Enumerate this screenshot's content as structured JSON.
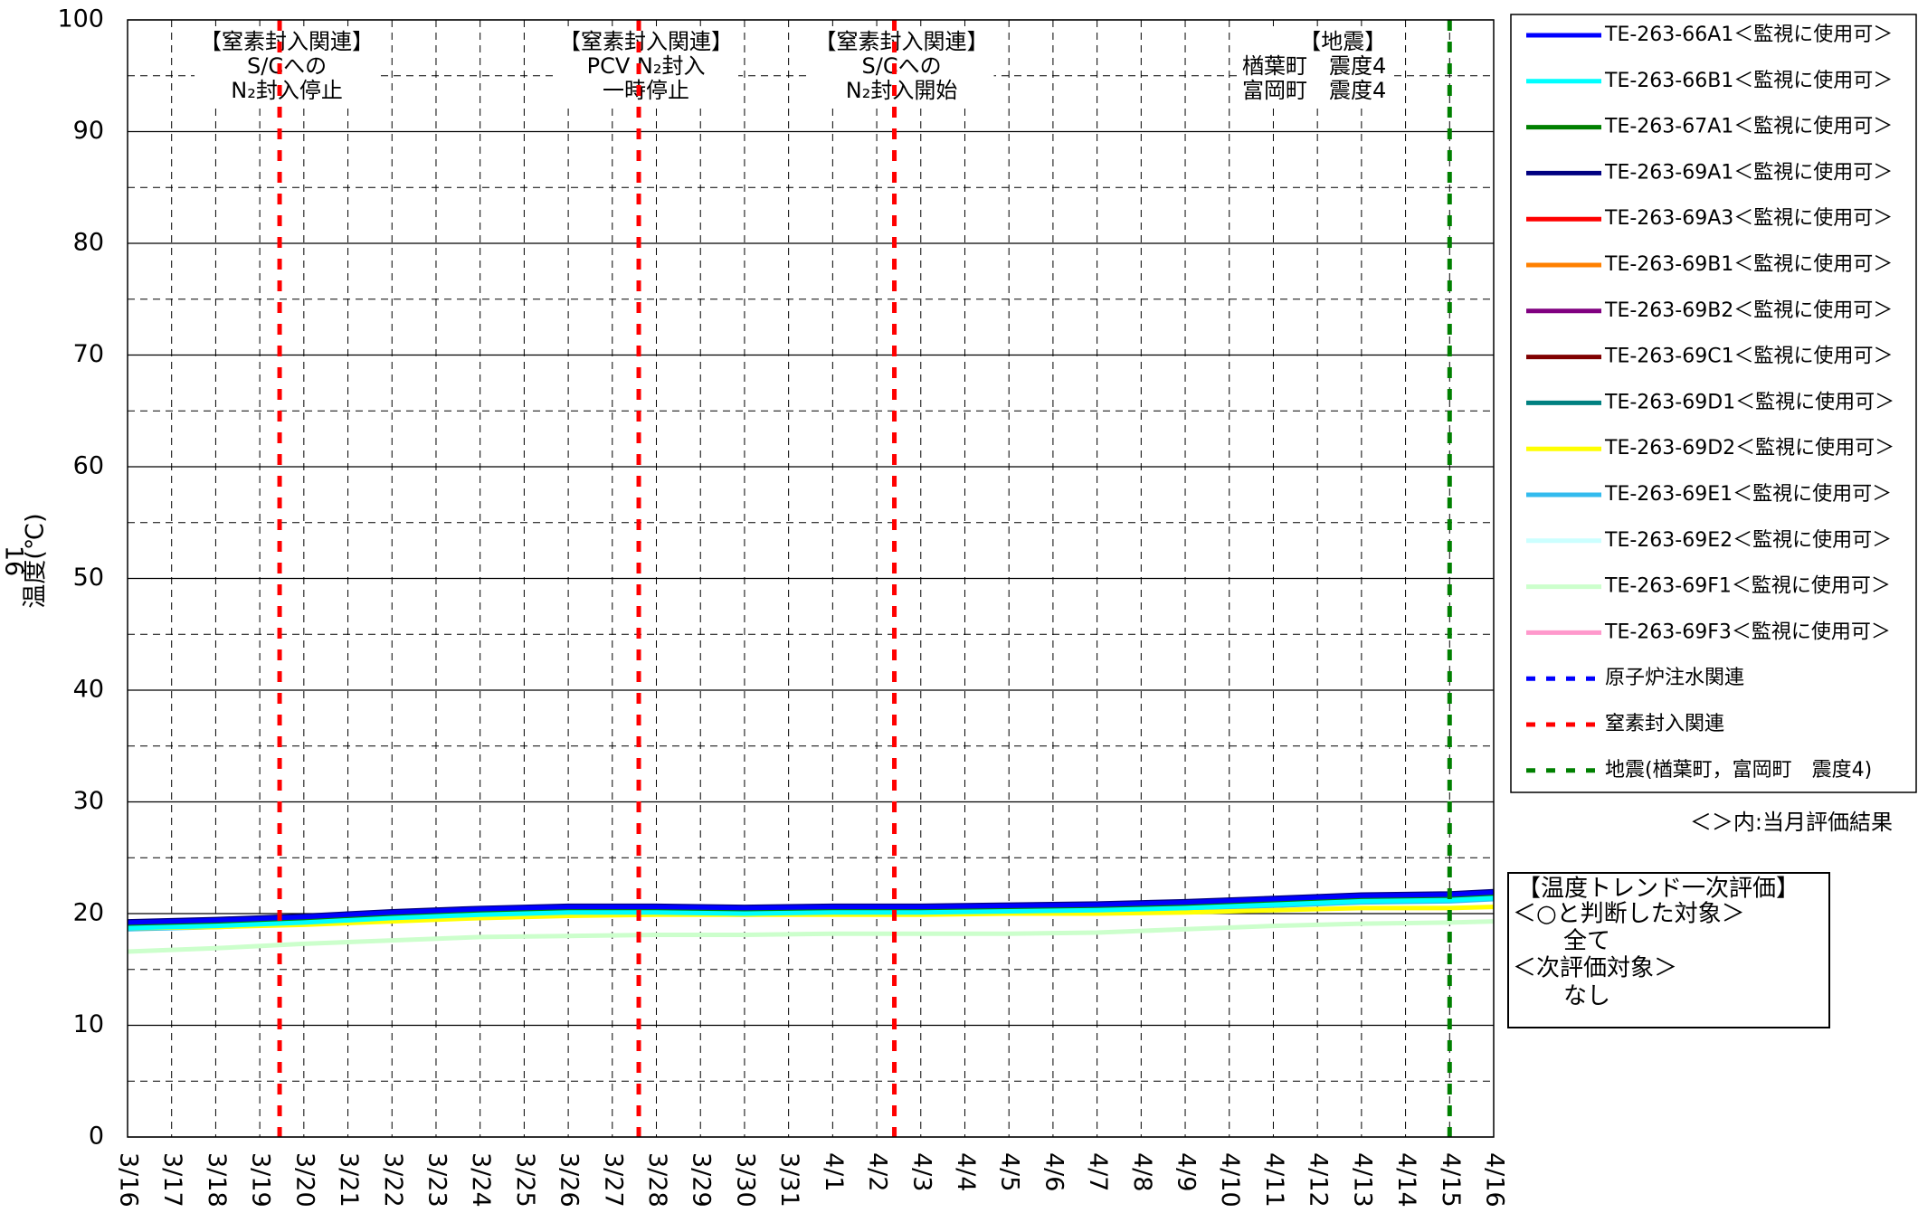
{
  "chart_data": {
    "type": "line",
    "y_label": "温度(℃)",
    "page_number": "16",
    "xlim": [
      0,
      31
    ],
    "xticks": [
      {
        "value": 0,
        "label": "3/16"
      },
      {
        "value": 1,
        "label": "3/17"
      },
      {
        "value": 2,
        "label": "3/18"
      },
      {
        "value": 3,
        "label": "3/19"
      },
      {
        "value": 4,
        "label": "3/20"
      },
      {
        "value": 5,
        "label": "3/21"
      },
      {
        "value": 6,
        "label": "3/22"
      },
      {
        "value": 7,
        "label": "3/23"
      },
      {
        "value": 8,
        "label": "3/24"
      },
      {
        "value": 9,
        "label": "3/25"
      },
      {
        "value": 10,
        "label": "3/26"
      },
      {
        "value": 11,
        "label": "3/27"
      },
      {
        "value": 12,
        "label": "3/28"
      },
      {
        "value": 13,
        "label": "3/29"
      },
      {
        "value": 14,
        "label": "3/30"
      },
      {
        "value": 15,
        "label": "3/31"
      },
      {
        "value": 16,
        "label": "4/1"
      },
      {
        "value": 17,
        "label": "4/2"
      },
      {
        "value": 18,
        "label": "4/3"
      },
      {
        "value": 19,
        "label": "4/4"
      },
      {
        "value": 20,
        "label": "4/5"
      },
      {
        "value": 21,
        "label": "4/6"
      },
      {
        "value": 22,
        "label": "4/7"
      },
      {
        "value": 23,
        "label": "4/8"
      },
      {
        "value": 24,
        "label": "4/9"
      },
      {
        "value": 25,
        "label": "4/10"
      },
      {
        "value": 26,
        "label": "4/11"
      },
      {
        "value": 27,
        "label": "4/12"
      },
      {
        "value": 28,
        "label": "4/13"
      },
      {
        "value": 29,
        "label": "4/14"
      },
      {
        "value": 30,
        "label": "4/15"
      },
      {
        "value": 31,
        "label": "4/16"
      }
    ],
    "ylim": [
      0,
      100
    ],
    "yticks": [
      0,
      10,
      20,
      30,
      40,
      50,
      60,
      70,
      80,
      90,
      100
    ],
    "yminor": [
      5,
      15,
      25,
      35,
      45,
      55,
      65,
      75,
      85,
      95
    ],
    "grid": true,
    "x": [
      0,
      2,
      4,
      6,
      8,
      10,
      12,
      14,
      16,
      18,
      20,
      22,
      24,
      26,
      28,
      30,
      31
    ],
    "series": [
      {
        "name": "TE-263-66A1＜監視に使用可＞",
        "color": "#0000ff",
        "values": [
          19.2,
          19.4,
          19.7,
          20.1,
          20.4,
          20.6,
          20.6,
          20.5,
          20.6,
          20.6,
          20.7,
          20.8,
          21.0,
          21.3,
          21.6,
          21.7,
          21.9
        ]
      },
      {
        "name": "TE-263-66B1＜監視に使用可＞",
        "color": "#00ffff",
        "values": [
          18.7,
          18.9,
          19.2,
          19.6,
          19.9,
          20.1,
          20.1,
          20.0,
          20.1,
          20.1,
          20.2,
          20.3,
          20.5,
          20.8,
          21.1,
          21.2,
          21.4
        ]
      },
      {
        "name": "TE-263-67A1＜監視に使用可＞",
        "color": "#008000",
        "values": [
          19.0,
          19.2,
          19.5,
          19.9,
          20.2,
          20.4,
          20.4,
          20.3,
          20.4,
          20.4,
          20.5,
          20.6,
          20.8,
          21.1,
          21.4,
          21.5,
          21.7
        ]
      },
      {
        "name": "TE-263-69A1＜監視に使用可＞",
        "color": "#000080",
        "values": [
          19.3,
          19.5,
          19.8,
          20.2,
          20.5,
          20.7,
          20.7,
          20.6,
          20.7,
          20.7,
          20.8,
          20.9,
          21.1,
          21.4,
          21.7,
          21.8,
          22.0
        ]
      },
      {
        "name": "TE-263-69A3＜監視に使用可＞",
        "color": "#ff0000",
        "values": [
          19.0,
          19.2,
          19.5,
          19.9,
          20.2,
          20.4,
          20.4,
          20.3,
          20.4,
          20.4,
          20.5,
          20.6,
          20.8,
          21.1,
          21.4,
          21.5,
          21.7
        ]
      },
      {
        "name": "TE-263-69B1＜監視に使用可＞",
        "color": "#ff8000",
        "values": [
          18.9,
          19.1,
          19.4,
          19.8,
          20.1,
          20.3,
          20.3,
          20.2,
          20.3,
          20.3,
          20.4,
          20.5,
          20.7,
          21.0,
          21.3,
          21.4,
          21.6
        ]
      },
      {
        "name": "TE-263-69B2＜監視に使用可＞",
        "color": "#800080",
        "values": [
          19.2,
          19.4,
          19.7,
          20.1,
          20.4,
          20.6,
          20.6,
          20.5,
          20.6,
          20.6,
          20.7,
          20.8,
          21.0,
          21.3,
          21.6,
          21.7,
          21.9
        ]
      },
      {
        "name": "TE-263-69C1＜監視に使用可＞",
        "color": "#800000",
        "values": [
          19.1,
          19.3,
          19.6,
          20.0,
          20.3,
          20.5,
          20.5,
          20.4,
          20.5,
          20.5,
          20.6,
          20.7,
          20.9,
          21.2,
          21.5,
          21.6,
          21.8
        ]
      },
      {
        "name": "TE-263-69D1＜監視に使用可＞",
        "color": "#008080",
        "values": [
          18.8,
          19.0,
          19.3,
          19.7,
          20.0,
          20.2,
          20.2,
          20.1,
          20.2,
          20.2,
          20.3,
          20.4,
          20.6,
          20.9,
          21.2,
          21.3,
          21.5
        ]
      },
      {
        "name": "TE-263-69D2＜監視に使用可＞",
        "color": "#ffff00",
        "values": [
          18.7,
          18.8,
          19.0,
          19.3,
          19.6,
          19.8,
          19.9,
          19.9,
          19.9,
          19.9,
          20.0,
          20.0,
          20.1,
          20.3,
          20.5,
          20.5,
          20.6
        ]
      },
      {
        "name": "TE-263-69E1＜監視に使用可＞",
        "color": "#33bbee",
        "values": [
          18.6,
          18.8,
          19.1,
          19.5,
          19.8,
          20.0,
          20.0,
          19.9,
          20.0,
          20.0,
          20.1,
          20.2,
          20.4,
          20.7,
          21.0,
          21.1,
          21.3
        ]
      },
      {
        "name": "TE-263-69E2＜監視に使用可＞",
        "color": "#ccffff",
        "values": [
          18.7,
          18.9,
          19.2,
          19.6,
          19.9,
          20.1,
          20.1,
          20.0,
          20.1,
          20.1,
          20.2,
          20.3,
          20.5,
          20.8,
          21.1,
          21.2,
          21.4
        ]
      },
      {
        "name": "TE-263-69F1＜監視に使用可＞",
        "color": "#ccffcc",
        "values": [
          16.6,
          16.9,
          17.3,
          17.6,
          17.9,
          18.0,
          18.1,
          18.1,
          18.2,
          18.2,
          18.2,
          18.3,
          18.6,
          18.9,
          19.1,
          19.2,
          19.3
        ]
      },
      {
        "name": "TE-263-69F3＜監視に使用可＞",
        "color": "#ff99cc",
        "values": [
          18.9,
          19.1,
          19.4,
          19.8,
          20.1,
          20.3,
          20.3,
          20.2,
          20.3,
          20.3,
          20.4,
          20.5,
          20.7,
          21.0,
          21.3,
          21.4,
          21.6
        ]
      }
    ],
    "event_types": [
      {
        "name": "原子炉注水関連",
        "color": "#0000ff"
      },
      {
        "name": "窒素封入関連",
        "color": "#ff0000"
      },
      {
        "name": "地震(楢葉町，富岡町　震度4)",
        "color": "#008000"
      }
    ],
    "events": [
      {
        "x": 3.45,
        "type": 1,
        "label": [
          "【窒素封入関連】",
          "S/Cへの",
          "N₂封入停止"
        ]
      },
      {
        "x": 11.6,
        "type": 1,
        "label": [
          "【窒素封入関連】",
          "PCV N₂封入",
          "一時停止"
        ]
      },
      {
        "x": 17.4,
        "type": 1,
        "label": [
          "【窒素封入関連】",
          "S/Cへの",
          "N₂封入開始"
        ]
      },
      {
        "x": 30,
        "type": 2,
        "label": [
          "【地震】",
          "楢葉町　震度4",
          "富岡町　震度4"
        ]
      }
    ],
    "legend_note": "＜＞内:当月評価結果",
    "evaluation": {
      "title": "【温度トレンド一次評価】",
      "lines": [
        "＜○と判断した対象＞",
        "全て",
        "＜次評価対象＞",
        "なし"
      ]
    }
  }
}
